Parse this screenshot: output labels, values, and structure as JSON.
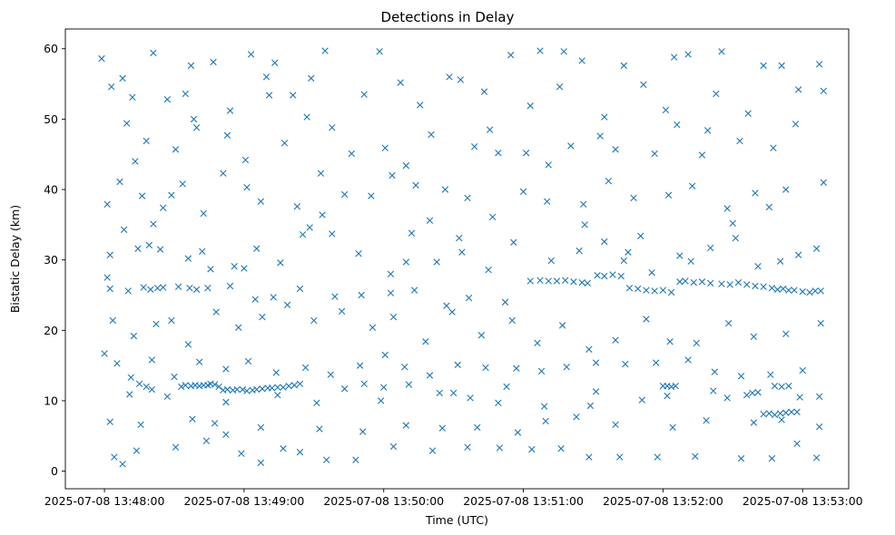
{
  "chart_data": {
    "type": "scatter",
    "title": "Detections in Delay",
    "xlabel": "Time (UTC)",
    "ylabel": "Bistatic Delay (km)",
    "marker": "x",
    "color": "#1f77b4",
    "xlim": [
      -0.28,
      5.33
    ],
    "ylim": [
      -2.5,
      62.8
    ],
    "xticks": [
      0,
      1,
      2,
      3,
      4,
      5
    ],
    "xtick_labels": [
      "2025-07-08 13:48:00",
      "2025-07-08 13:49:00",
      "2025-07-08 13:50:00",
      "2025-07-08 13:51:00",
      "2025-07-08 13:52:00",
      "2025-07-08 13:53:00"
    ],
    "yticks": [
      0,
      10,
      20,
      30,
      40,
      50,
      60
    ],
    "ytick_labels": [
      "0",
      "10",
      "20",
      "30",
      "40",
      "50",
      "60"
    ],
    "x_units": "minutes after 13:48:00",
    "points": [
      [
        -0.02,
        58.6
      ],
      [
        0.13,
        55.8
      ],
      [
        0.35,
        59.4
      ],
      [
        0.62,
        57.6
      ],
      [
        0.78,
        58.1
      ],
      [
        1.05,
        59.2
      ],
      [
        1.22,
        58.0
      ],
      [
        1.58,
        59.7
      ],
      [
        1.97,
        59.6
      ],
      [
        2.12,
        55.2
      ],
      [
        2.55,
        55.6
      ],
      [
        2.91,
        59.1
      ],
      [
        3.12,
        59.7
      ],
      [
        3.29,
        59.6
      ],
      [
        3.42,
        58.3
      ],
      [
        3.72,
        57.6
      ],
      [
        4.08,
        58.8
      ],
      [
        4.18,
        59.2
      ],
      [
        4.42,
        59.6
      ],
      [
        4.72,
        57.6
      ],
      [
        4.85,
        57.6
      ],
      [
        5.12,
        57.8
      ],
      [
        0.05,
        54.6
      ],
      [
        0.2,
        53.1
      ],
      [
        0.45,
        52.8
      ],
      [
        0.58,
        53.6
      ],
      [
        0.9,
        51.2
      ],
      [
        1.16,
        56.0
      ],
      [
        1.35,
        53.4
      ],
      [
        1.48,
        55.8
      ],
      [
        1.86,
        53.5
      ],
      [
        2.26,
        52.0
      ],
      [
        2.47,
        56.0
      ],
      [
        2.72,
        53.9
      ],
      [
        3.05,
        51.9
      ],
      [
        3.26,
        54.6
      ],
      [
        3.58,
        50.3
      ],
      [
        3.86,
        54.9
      ],
      [
        4.02,
        51.3
      ],
      [
        4.38,
        53.6
      ],
      [
        4.61,
        50.8
      ],
      [
        4.97,
        54.2
      ],
      [
        5.15,
        54.0
      ],
      [
        0.16,
        49.4
      ],
      [
        0.3,
        46.9
      ],
      [
        0.51,
        45.7
      ],
      [
        0.66,
        48.8
      ],
      [
        0.88,
        47.7
      ],
      [
        1.01,
        44.2
      ],
      [
        1.29,
        46.6
      ],
      [
        1.45,
        50.3
      ],
      [
        1.63,
        48.8
      ],
      [
        1.77,
        45.1
      ],
      [
        2.01,
        45.9
      ],
      [
        2.16,
        43.4
      ],
      [
        2.34,
        47.8
      ],
      [
        2.65,
        46.1
      ],
      [
        2.82,
        45.2
      ],
      [
        3.02,
        45.2
      ],
      [
        3.18,
        43.5
      ],
      [
        3.34,
        46.2
      ],
      [
        3.66,
        45.7
      ],
      [
        3.94,
        45.1
      ],
      [
        4.1,
        49.2
      ],
      [
        4.32,
        48.4
      ],
      [
        4.55,
        46.9
      ],
      [
        4.79,
        45.9
      ],
      [
        4.95,
        49.3
      ],
      [
        0.02,
        37.9
      ],
      [
        0.11,
        41.1
      ],
      [
        0.27,
        39.1
      ],
      [
        0.42,
        37.4
      ],
      [
        0.56,
        40.8
      ],
      [
        0.71,
        36.6
      ],
      [
        0.85,
        42.3
      ],
      [
        1.02,
        40.3
      ],
      [
        1.12,
        38.3
      ],
      [
        1.38,
        37.6
      ],
      [
        1.55,
        42.3
      ],
      [
        1.72,
        39.3
      ],
      [
        1.91,
        39.1
      ],
      [
        2.06,
        42.0
      ],
      [
        2.23,
        40.6
      ],
      [
        2.44,
        40.0
      ],
      [
        2.6,
        38.8
      ],
      [
        2.78,
        36.1
      ],
      [
        3.0,
        39.7
      ],
      [
        3.17,
        38.3
      ],
      [
        3.43,
        37.9
      ],
      [
        3.61,
        41.2
      ],
      [
        3.79,
        38.8
      ],
      [
        4.04,
        39.2
      ],
      [
        4.21,
        40.5
      ],
      [
        4.46,
        37.3
      ],
      [
        4.66,
        39.5
      ],
      [
        4.88,
        40.0
      ],
      [
        5.15,
        41.0
      ],
      [
        0.04,
        30.7
      ],
      [
        0.14,
        34.3
      ],
      [
        0.24,
        31.6
      ],
      [
        0.32,
        32.1
      ],
      [
        0.4,
        31.5
      ],
      [
        0.6,
        30.2
      ],
      [
        0.76,
        28.7
      ],
      [
        0.93,
        29.1
      ],
      [
        1.09,
        31.6
      ],
      [
        1.26,
        29.6
      ],
      [
        1.42,
        33.6
      ],
      [
        1.63,
        33.7
      ],
      [
        1.82,
        30.9
      ],
      [
        2.05,
        28.0
      ],
      [
        2.2,
        33.8
      ],
      [
        2.38,
        29.7
      ],
      [
        2.56,
        31.1
      ],
      [
        2.75,
        28.6
      ],
      [
        2.93,
        32.5
      ],
      [
        3.2,
        29.9
      ],
      [
        3.4,
        31.3
      ],
      [
        3.58,
        32.6
      ],
      [
        3.72,
        29.9
      ],
      [
        3.92,
        28.2
      ],
      [
        4.12,
        30.6
      ],
      [
        4.34,
        31.7
      ],
      [
        4.52,
        33.1
      ],
      [
        4.68,
        29.1
      ],
      [
        4.84,
        29.8
      ],
      [
        5.1,
        31.6
      ],
      [
        0.02,
        27.5
      ],
      [
        0.04,
        25.9
      ],
      [
        0.17,
        25.6
      ],
      [
        0.28,
        26.1
      ],
      [
        0.33,
        25.8
      ],
      [
        0.38,
        26.0
      ],
      [
        0.42,
        26.1
      ],
      [
        0.53,
        26.2
      ],
      [
        0.61,
        26.0
      ],
      [
        0.66,
        25.8
      ],
      [
        0.74,
        26.0
      ],
      [
        0.9,
        26.3
      ],
      [
        1.08,
        24.4
      ],
      [
        1.21,
        24.7
      ],
      [
        1.4,
        25.9
      ],
      [
        1.65,
        24.8
      ],
      [
        1.84,
        25.0
      ],
      [
        2.05,
        25.3
      ],
      [
        2.22,
        25.7
      ],
      [
        2.45,
        23.5
      ],
      [
        2.61,
        24.6
      ],
      [
        2.87,
        24.0
      ],
      [
        3.05,
        27.0
      ],
      [
        3.12,
        27.1
      ],
      [
        3.18,
        27.0
      ],
      [
        3.24,
        27.0
      ],
      [
        3.3,
        27.1
      ],
      [
        3.36,
        26.9
      ],
      [
        3.42,
        26.8
      ],
      [
        3.46,
        26.7
      ],
      [
        3.53,
        27.8
      ],
      [
        3.58,
        27.7
      ],
      [
        3.64,
        27.9
      ],
      [
        3.7,
        27.7
      ],
      [
        3.76,
        26.0
      ],
      [
        3.82,
        25.9
      ],
      [
        3.88,
        25.7
      ],
      [
        3.94,
        25.6
      ],
      [
        4.0,
        25.7
      ],
      [
        4.06,
        25.4
      ],
      [
        4.12,
        26.9
      ],
      [
        4.16,
        27.0
      ],
      [
        4.22,
        26.8
      ],
      [
        4.28,
        26.9
      ],
      [
        4.34,
        26.7
      ],
      [
        4.42,
        26.6
      ],
      [
        4.48,
        26.5
      ],
      [
        4.54,
        26.8
      ],
      [
        4.6,
        26.5
      ],
      [
        4.66,
        26.3
      ],
      [
        4.72,
        26.2
      ],
      [
        4.78,
        26.0
      ],
      [
        4.82,
        25.8
      ],
      [
        4.86,
        25.9
      ],
      [
        4.9,
        25.7
      ],
      [
        4.94,
        25.7
      ],
      [
        5.0,
        25.5
      ],
      [
        5.05,
        25.4
      ],
      [
        5.09,
        25.6
      ],
      [
        5.13,
        25.6
      ],
      [
        0.06,
        21.4
      ],
      [
        0.21,
        19.2
      ],
      [
        0.37,
        20.9
      ],
      [
        0.48,
        21.4
      ],
      [
        0.6,
        18.0
      ],
      [
        0.8,
        22.6
      ],
      [
        0.96,
        20.4
      ],
      [
        1.13,
        21.9
      ],
      [
        1.31,
        23.6
      ],
      [
        1.5,
        21.4
      ],
      [
        1.7,
        22.7
      ],
      [
        1.92,
        20.4
      ],
      [
        2.07,
        21.9
      ],
      [
        2.3,
        18.4
      ],
      [
        2.49,
        22.6
      ],
      [
        2.7,
        19.3
      ],
      [
        2.92,
        21.4
      ],
      [
        3.1,
        18.2
      ],
      [
        3.28,
        20.7
      ],
      [
        3.47,
        17.3
      ],
      [
        3.66,
        18.6
      ],
      [
        3.88,
        21.6
      ],
      [
        4.05,
        18.4
      ],
      [
        4.24,
        18.2
      ],
      [
        4.47,
        21.0
      ],
      [
        4.65,
        19.1
      ],
      [
        4.88,
        19.5
      ],
      [
        5.13,
        21.0
      ],
      [
        0.0,
        16.7
      ],
      [
        0.09,
        15.3
      ],
      [
        0.19,
        13.3
      ],
      [
        0.34,
        15.8
      ],
      [
        0.5,
        13.4
      ],
      [
        0.68,
        15.5
      ],
      [
        0.87,
        14.5
      ],
      [
        1.03,
        15.6
      ],
      [
        1.23,
        14.0
      ],
      [
        1.44,
        14.7
      ],
      [
        1.62,
        13.7
      ],
      [
        1.83,
        15.0
      ],
      [
        2.01,
        16.5
      ],
      [
        2.15,
        14.8
      ],
      [
        2.33,
        13.6
      ],
      [
        2.53,
        15.1
      ],
      [
        2.73,
        14.7
      ],
      [
        2.95,
        14.6
      ],
      [
        3.13,
        14.2
      ],
      [
        3.31,
        14.8
      ],
      [
        3.52,
        15.4
      ],
      [
        3.73,
        15.2
      ],
      [
        3.95,
        15.4
      ],
      [
        4.18,
        15.8
      ],
      [
        4.37,
        14.1
      ],
      [
        4.56,
        13.5
      ],
      [
        4.77,
        13.7
      ],
      [
        5.0,
        14.3
      ],
      [
        0.25,
        12.4
      ],
      [
        0.3,
        12.0
      ],
      [
        0.34,
        11.6
      ],
      [
        0.55,
        12.0
      ],
      [
        0.58,
        12.2
      ],
      [
        0.62,
        12.1
      ],
      [
        0.65,
        12.2
      ],
      [
        0.68,
        12.1
      ],
      [
        0.71,
        12.2
      ],
      [
        0.74,
        12.2
      ],
      [
        0.76,
        12.4
      ],
      [
        0.79,
        12.3
      ],
      [
        0.82,
        12.0
      ],
      [
        0.85,
        11.5
      ],
      [
        0.88,
        11.6
      ],
      [
        0.92,
        11.5
      ],
      [
        0.95,
        11.6
      ],
      [
        0.99,
        11.6
      ],
      [
        1.02,
        11.4
      ],
      [
        1.06,
        11.5
      ],
      [
        1.09,
        11.6
      ],
      [
        1.13,
        11.7
      ],
      [
        1.17,
        11.8
      ],
      [
        1.2,
        11.8
      ],
      [
        1.24,
        11.9
      ],
      [
        1.28,
        11.9
      ],
      [
        1.32,
        12.1
      ],
      [
        1.36,
        12.2
      ],
      [
        1.4,
        12.4
      ],
      [
        1.72,
        11.7
      ],
      [
        1.86,
        12.4
      ],
      [
        2.0,
        11.9
      ],
      [
        2.18,
        12.3
      ],
      [
        2.5,
        11.1
      ],
      [
        2.88,
        12.0
      ],
      [
        3.52,
        11.3
      ],
      [
        4.0,
        12.1
      ],
      [
        4.03,
        12.1
      ],
      [
        4.06,
        12.0
      ],
      [
        4.09,
        12.1
      ],
      [
        4.36,
        11.4
      ],
      [
        4.6,
        10.8
      ],
      [
        4.68,
        11.2
      ],
      [
        4.8,
        12.1
      ],
      [
        4.85,
        12.0
      ],
      [
        4.9,
        12.1
      ],
      [
        4.72,
        8.1
      ],
      [
        4.76,
        8.2
      ],
      [
        4.8,
        8.0
      ],
      [
        4.84,
        8.2
      ],
      [
        4.88,
        8.3
      ],
      [
        4.92,
        8.4
      ],
      [
        4.96,
        8.4
      ],
      [
        0.18,
        10.9
      ],
      [
        0.45,
        10.6
      ],
      [
        0.87,
        9.8
      ],
      [
        1.24,
        10.8
      ],
      [
        1.52,
        9.7
      ],
      [
        1.98,
        10.0
      ],
      [
        2.4,
        11.1
      ],
      [
        2.62,
        10.4
      ],
      [
        2.82,
        9.7
      ],
      [
        3.15,
        9.2
      ],
      [
        3.48,
        9.3
      ],
      [
        3.85,
        10.1
      ],
      [
        4.03,
        10.7
      ],
      [
        4.46,
        10.4
      ],
      [
        4.64,
        11.1
      ],
      [
        4.98,
        10.5
      ],
      [
        5.12,
        10.6
      ],
      [
        0.04,
        7.0
      ],
      [
        0.26,
        6.6
      ],
      [
        0.63,
        7.4
      ],
      [
        0.79,
        6.8
      ],
      [
        1.12,
        6.2
      ],
      [
        1.54,
        6.0
      ],
      [
        1.85,
        5.6
      ],
      [
        2.16,
        6.5
      ],
      [
        2.42,
        6.1
      ],
      [
        2.67,
        6.2
      ],
      [
        2.96,
        5.5
      ],
      [
        3.16,
        7.1
      ],
      [
        3.38,
        7.7
      ],
      [
        3.66,
        6.6
      ],
      [
        4.07,
        6.2
      ],
      [
        4.31,
        7.2
      ],
      [
        4.65,
        6.9
      ],
      [
        4.85,
        7.3
      ],
      [
        5.12,
        6.3
      ],
      [
        0.07,
        2.0
      ],
      [
        0.13,
        1.0
      ],
      [
        0.23,
        2.9
      ],
      [
        0.51,
        3.4
      ],
      [
        0.73,
        4.3
      ],
      [
        0.87,
        5.2
      ],
      [
        0.98,
        2.5
      ],
      [
        1.12,
        1.2
      ],
      [
        1.28,
        3.2
      ],
      [
        1.4,
        2.7
      ],
      [
        1.59,
        1.6
      ],
      [
        1.8,
        1.6
      ],
      [
        2.07,
        3.5
      ],
      [
        2.35,
        2.9
      ],
      [
        2.6,
        3.4
      ],
      [
        2.83,
        3.3
      ],
      [
        3.06,
        3.1
      ],
      [
        3.27,
        3.2
      ],
      [
        3.47,
        2.0
      ],
      [
        3.69,
        2.0
      ],
      [
        3.96,
        2.0
      ],
      [
        4.23,
        2.1
      ],
      [
        4.56,
        1.8
      ],
      [
        4.78,
        1.8
      ],
      [
        4.96,
        3.9
      ],
      [
        5.1,
        1.9
      ],
      [
        0.64,
        50.0
      ],
      [
        1.18,
        53.4
      ],
      [
        2.76,
        48.5
      ],
      [
        3.55,
        47.6
      ],
      [
        4.28,
        44.9
      ],
      [
        0.22,
        44.0
      ],
      [
        0.48,
        39.2
      ],
      [
        1.56,
        36.4
      ],
      [
        2.33,
        35.6
      ],
      [
        3.44,
        35.0
      ],
      [
        4.5,
        35.2
      ],
      [
        4.76,
        37.5
      ],
      [
        0.35,
        35.1
      ],
      [
        0.7,
        31.2
      ],
      [
        1.47,
        34.6
      ],
      [
        2.54,
        33.1
      ],
      [
        3.84,
        33.4
      ],
      [
        4.97,
        30.7
      ],
      [
        1.0,
        28.8
      ],
      [
        2.16,
        29.7
      ],
      [
        3.75,
        31.1
      ],
      [
        4.2,
        29.8
      ]
    ]
  }
}
